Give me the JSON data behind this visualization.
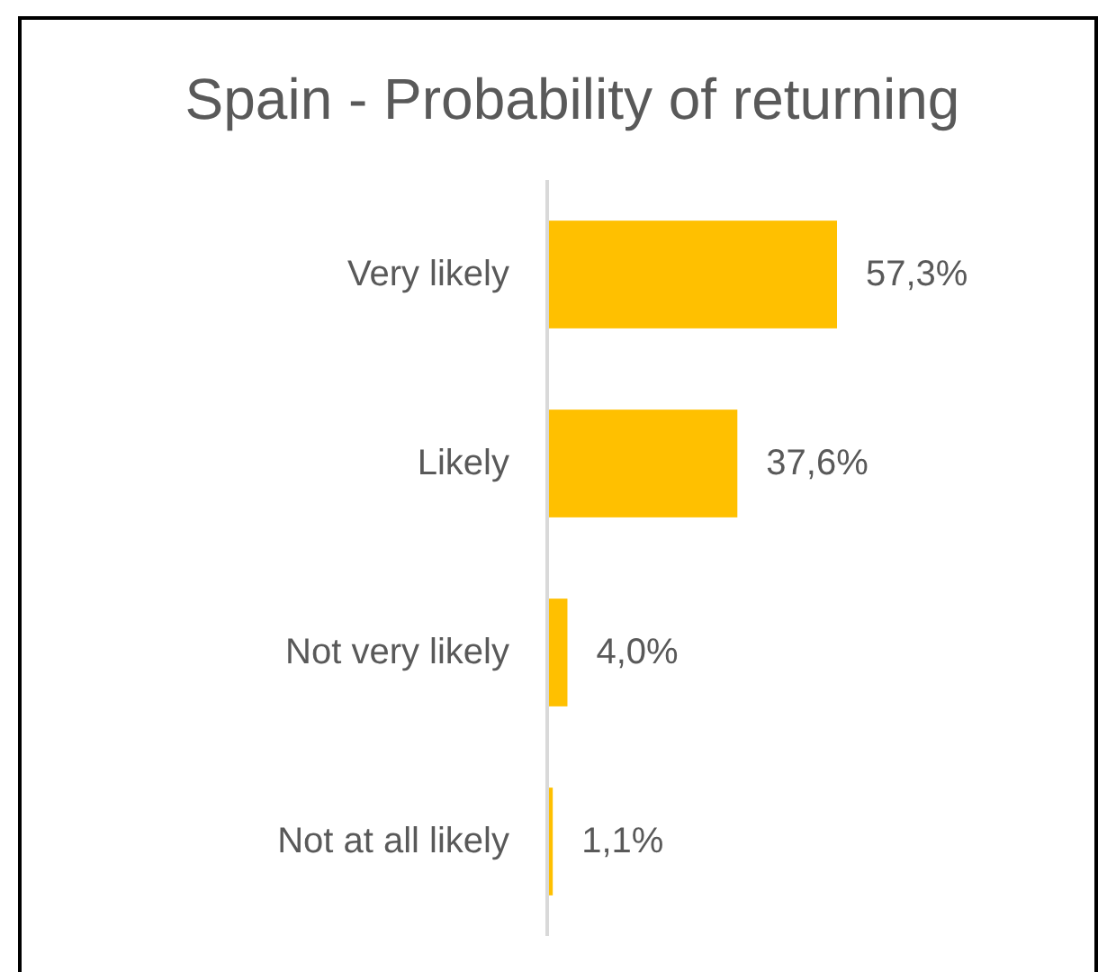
{
  "chart_data": {
    "type": "bar",
    "title": "Spain - Probability of returning",
    "orientation": "horizontal",
    "categories": [
      "Very likely",
      "Likely",
      "Not very likely",
      "Not at all likely"
    ],
    "values": [
      57.3,
      37.6,
      4.0,
      1.1
    ],
    "color": "#ffc000",
    "value_labels": [
      "57,3%",
      "37,6%",
      "4,0%",
      "1,1%"
    ]
  }
}
